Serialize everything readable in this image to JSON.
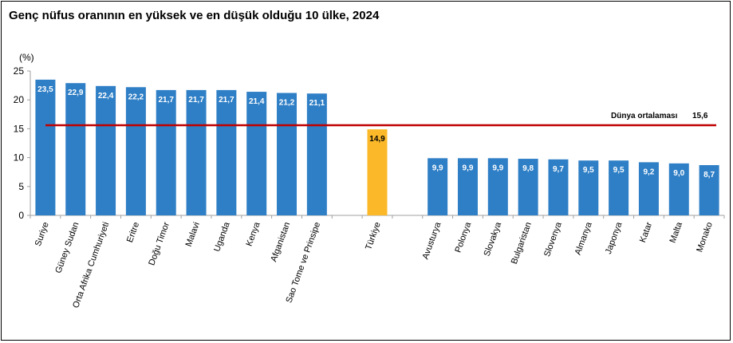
{
  "title": "Genç nüfus oranının en yüksek ve en düşük olduğu 10 ülke, 2024",
  "colors": {
    "bar": "#2f7fc6",
    "highlight": "#fbb92a",
    "average_line": "#c00000",
    "axis": "#a0a0a0"
  },
  "chart_data": {
    "type": "bar",
    "title": "Genç nüfus oranının en yüksek ve en düşük olduğu 10 ülke, 2024",
    "ylabel": "(%)",
    "xlabel": "",
    "ylim": [
      0,
      25
    ],
    "yticks": [
      "0",
      "5",
      "10",
      "15",
      "20",
      "25"
    ],
    "grid": false,
    "categories": [
      "Suriye",
      "Güney Sudan",
      "Orta Afrika Cumhuriyeti",
      "Eritre",
      "Doğu Timor",
      "Malavi",
      "Uganda",
      "Kenya",
      "Afganistan",
      "Sao Tome ve Prinsipe",
      "",
      "Türkiye",
      "",
      "Avusturya",
      "Polonya",
      "Slovakya",
      "Bulgaristan",
      "Slovenya",
      "Almanya",
      "Japonya",
      "Katar",
      "Malta",
      "Monako"
    ],
    "values": [
      23.5,
      22.9,
      22.4,
      22.2,
      21.7,
      21.7,
      21.7,
      21.4,
      21.2,
      21.1,
      null,
      14.9,
      null,
      9.9,
      9.9,
      9.9,
      9.8,
      9.7,
      9.5,
      9.5,
      9.2,
      9.0,
      8.7
    ],
    "value_labels": [
      "23,5",
      "22,9",
      "22,4",
      "22,2",
      "21,7",
      "21,7",
      "21,7",
      "21,4",
      "21,2",
      "21,1",
      "",
      "14,9",
      "",
      "9,9",
      "9,9",
      "9,9",
      "9,8",
      "9,7",
      "9,5",
      "9,5",
      "9,2",
      "9,0",
      "8,7"
    ],
    "highlight_category": "Türkiye",
    "average": {
      "label": "Dünya ortalaması",
      "value": 15.6,
      "value_label": "15,6"
    }
  }
}
